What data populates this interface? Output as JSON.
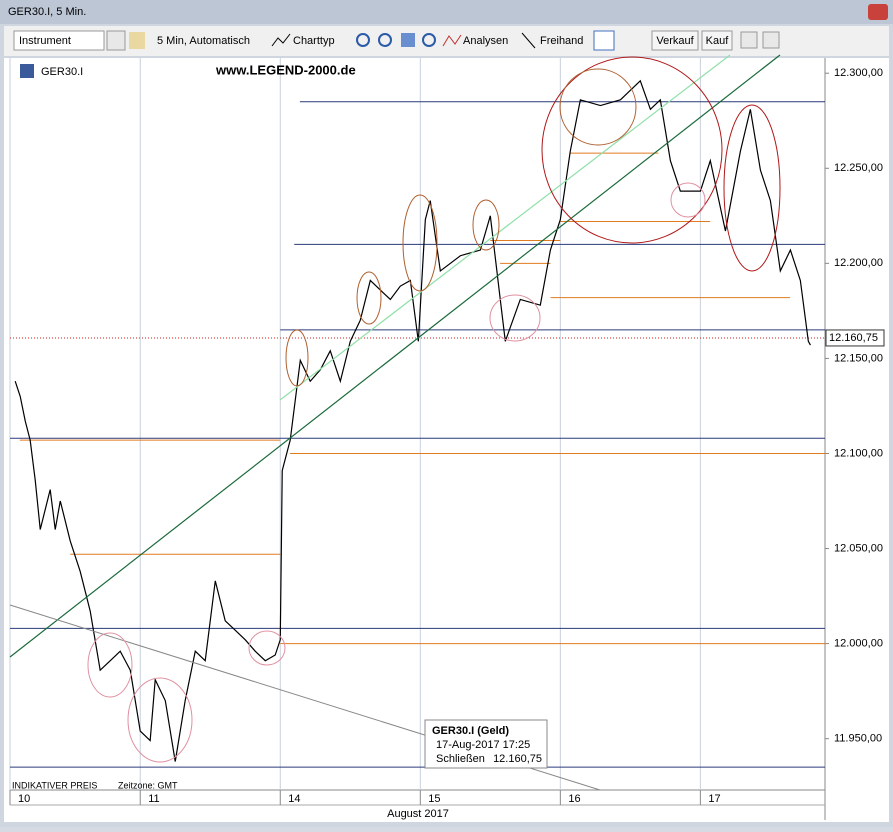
{
  "window": {
    "title": "GER30.I, 5 Min."
  },
  "toolbar": {
    "instrument": "Instrument",
    "interval": "5 Min, Automatisch",
    "chart_type": "Charttyp",
    "analyses": "Analysen",
    "freehand": "Freihand",
    "sell": "Verkauf",
    "buy": "Kauf"
  },
  "chart_header": {
    "instrument": "GER30.I",
    "watermark": "www.LEGEND-2000.de"
  },
  "footer": {
    "indicative": "INDIKATIVER PREIS",
    "timezone": "Zeitzone: GMT",
    "month": "August 2017"
  },
  "tooltip": {
    "title": "GER30.I (Geld)",
    "time": "17-Aug-2017 17:25",
    "close_label": "Schließen",
    "close_value": "12.160,75"
  },
  "chart_data": {
    "type": "line",
    "x": [
      0.107,
      0.143,
      0.179,
      0.214,
      0.25,
      0.286,
      0.357,
      0.393,
      0.429,
      0.5,
      0.571,
      0.643,
      0.714,
      0.786,
      0.857,
      0.929,
      1.0,
      1.071,
      1.107,
      1.179,
      1.25,
      1.321,
      1.393,
      1.464,
      1.536,
      1.607,
      1.679,
      1.75,
      1.821,
      1.893,
      1.964,
      2.0,
      2.014,
      2.071,
      2.143,
      2.214,
      2.286,
      2.357,
      2.429,
      2.5,
      2.571,
      2.643,
      2.714,
      2.786,
      2.857,
      2.929,
      2.986,
      3.036,
      3.071,
      3.143,
      3.286,
      3.429,
      3.5,
      3.571,
      3.607,
      3.714,
      3.857,
      3.929,
      4.0,
      4.071,
      4.143,
      4.286,
      4.429,
      4.571,
      4.643,
      4.714,
      4.786,
      4.857,
      5.0,
      5.071,
      5.179,
      5.286,
      5.357,
      5.429,
      5.5,
      5.571,
      5.643,
      5.714,
      5.771,
      5.786
    ],
    "series": [
      {
        "color": "#000000",
        "values": [
          12138,
          12130,
          12117,
          12107,
          12086,
          12060,
          12081,
          12060,
          12075,
          12054,
          12038,
          12017,
          11986,
          11991,
          11996,
          11986,
          11954,
          11949,
          11981,
          11970,
          11938,
          11970,
          11996,
          11991,
          12033,
          12012,
          12007,
          12002,
          11996,
          11991,
          11994,
          12002,
          12091,
          12107,
          12149,
          12138,
          12144,
          12154,
          12138,
          12159,
          12170,
          12191,
          12186,
          12181,
          12188,
          12191,
          12159,
          12223,
          12233,
          12196,
          12204,
          12207,
          12225,
          12181,
          12159,
          12181,
          12178,
          12207,
          12223,
          12259,
          12286,
          12283,
          12286,
          12296,
          12281,
          12286,
          12254,
          12238,
          12238,
          12254,
          12217,
          12259,
          12281,
          12249,
          12233,
          12196,
          12207,
          12191,
          12159,
          12157
        ]
      }
    ],
    "xlim": [
      0.07,
      5.89
    ],
    "ylim": [
      11923,
      12308
    ],
    "xticks": [
      {
        "value": 0.07,
        "label": "10"
      },
      {
        "value": 1,
        "label": "11"
      },
      {
        "value": 2,
        "label": "14"
      },
      {
        "value": 3,
        "label": "15"
      },
      {
        "value": 4,
        "label": "16"
      },
      {
        "value": 5,
        "label": "17"
      }
    ],
    "yticks": [
      {
        "value": 11950,
        "label": "11.950,00"
      },
      {
        "value": 12000,
        "label": "12.000,00"
      },
      {
        "value": 12050,
        "label": "12.050,00"
      },
      {
        "value": 12100,
        "label": "12.100,00"
      },
      {
        "value": 12150,
        "label": "12.150,00"
      },
      {
        "value": 12200,
        "label": "12.200,00"
      },
      {
        "value": 12250,
        "label": "12.250,00"
      },
      {
        "value": 12300,
        "label": "12.300,00"
      }
    ],
    "xgrid": true,
    "last_price": {
      "value": 12160.75,
      "label": "12.160,75"
    },
    "levels": [
      {
        "value": 12285,
        "from": 2.14,
        "to": 5.89,
        "color": "#2a3a7a"
      },
      {
        "value": 12210,
        "from": 2.1,
        "to": 5.89,
        "color": "#2a3a7a"
      },
      {
        "value": 12165,
        "from": 2.0,
        "to": 5.89,
        "color": "#2a3a7a"
      },
      {
        "value": 12108,
        "from": 0.07,
        "to": 5.89,
        "color": "#2a3a7a"
      },
      {
        "value": 12008,
        "from": 0.07,
        "to": 5.89,
        "color": "#2a3a7a"
      },
      {
        "value": 11935,
        "from": 0.07,
        "to": 5.89,
        "color": "#2a3a7a"
      },
      {
        "value": 12107,
        "from": 0.14,
        "to": 2.0,
        "color": "#e07b20"
      },
      {
        "value": 12047,
        "from": 0.5,
        "to": 2.0,
        "color": "#e07b20"
      },
      {
        "value": 12000,
        "from": 2.0,
        "to": 5.89,
        "color": "#e07b20"
      },
      {
        "value": 12100,
        "from": 2.07,
        "to": 5.89,
        "color": "#e07b20"
      },
      {
        "value": 12182,
        "from": 3.93,
        "to": 5.64,
        "color": "#e07b20"
      },
      {
        "value": 12222,
        "from": 4.0,
        "to": 5.07,
        "color": "#e07b20"
      },
      {
        "value": 12258,
        "from": 4.07,
        "to": 4.7,
        "color": "#e07b20"
      },
      {
        "value": 12200,
        "from": 3.57,
        "to": 3.93,
        "color": "#e07b20"
      },
      {
        "value": 12212,
        "from": 3.5,
        "to": 4.0,
        "color": "#e07b20"
      }
    ]
  }
}
